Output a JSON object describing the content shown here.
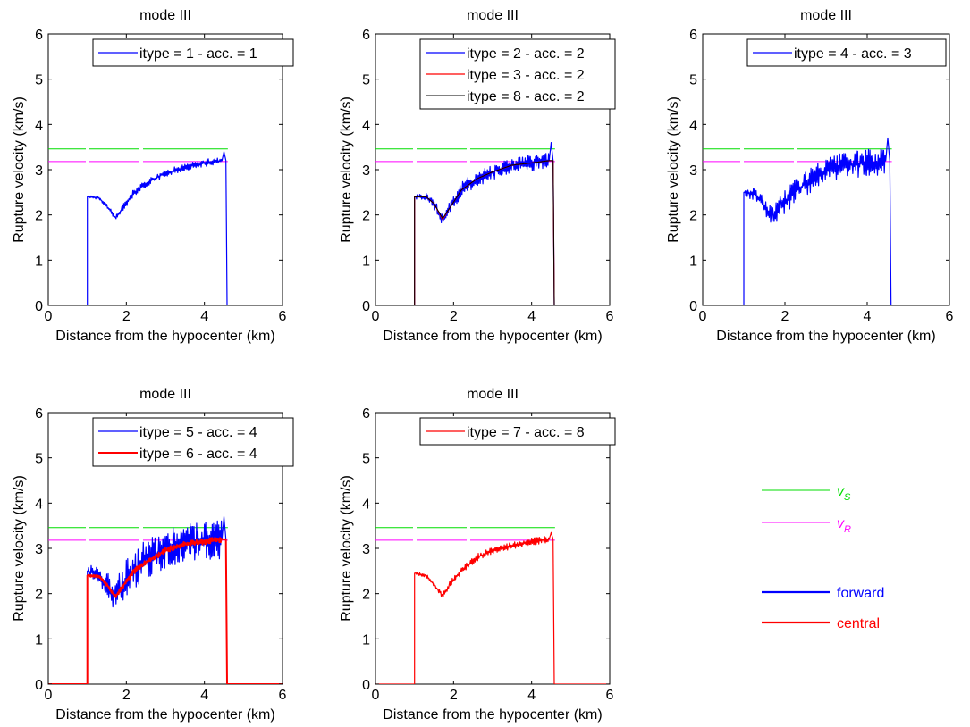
{
  "figure": {
    "global_legend": [
      {
        "label": "v",
        "subscript": "S",
        "color": "#00dd00",
        "italic": true
      },
      {
        "label": "v",
        "subscript": "R",
        "color": "#ff00ff",
        "italic": true
      },
      {
        "label": "forward",
        "color": "#0000ff",
        "bold": true
      },
      {
        "label": "central",
        "color": "#ff0000",
        "bold": true
      }
    ]
  },
  "chart_data": [
    {
      "type": "line",
      "title": "mode III",
      "xlabel": "Distance from the hypocenter (km)",
      "ylabel": "Rupture velocity (km/s)",
      "xlim": [
        0,
        6
      ],
      "ylim": [
        0,
        6
      ],
      "xticks": [
        0,
        2,
        4,
        6
      ],
      "yticks": [
        0,
        1,
        2,
        3,
        4,
        5,
        6
      ],
      "legend_position": "top-right",
      "reference_lines": [
        {
          "name": "v_S",
          "y": 3.46,
          "x": [
            0,
            4.6
          ],
          "color": "#00dd00"
        },
        {
          "name": "v_R",
          "y": 3.18,
          "x": [
            0,
            4.6
          ],
          "color": "#ff00ff"
        }
      ],
      "series": [
        {
          "name": "itype = 1 - acc. = 1",
          "color": "#0000ff",
          "width": 1.2,
          "noise": 0.08,
          "points": [
            [
              0,
              0
            ],
            [
              1,
              0
            ],
            [
              1,
              2.4
            ],
            [
              1.3,
              2.38
            ],
            [
              1.5,
              2.2
            ],
            [
              1.72,
              1.92
            ],
            [
              1.9,
              2.15
            ],
            [
              2.2,
              2.5
            ],
            [
              2.6,
              2.75
            ],
            [
              3.0,
              2.92
            ],
            [
              3.5,
              3.05
            ],
            [
              4.0,
              3.15
            ],
            [
              4.45,
              3.2
            ],
            [
              4.5,
              3.4
            ],
            [
              4.55,
              3.2
            ],
            [
              4.58,
              0
            ],
            [
              6,
              0
            ]
          ]
        }
      ]
    },
    {
      "type": "line",
      "title": "mode III",
      "xlabel": "Distance from the hypocenter (km)",
      "ylabel": "Rupture velocity (km/s)",
      "xlim": [
        0,
        6
      ],
      "ylim": [
        0,
        6
      ],
      "xticks": [
        0,
        2,
        4,
        6
      ],
      "yticks": [
        0,
        1,
        2,
        3,
        4,
        5,
        6
      ],
      "legend_position": "top-right",
      "reference_lines": [
        {
          "name": "v_S",
          "y": 3.46,
          "x": [
            0,
            4.6
          ],
          "color": "#00dd00"
        },
        {
          "name": "v_R",
          "y": 3.18,
          "x": [
            0,
            4.6
          ],
          "color": "#ff00ff"
        }
      ],
      "series": [
        {
          "name": "itype = 2 - acc. = 2",
          "color": "#0000ff",
          "width": 1.2,
          "noise": 0.18,
          "points": [
            [
              0,
              0
            ],
            [
              1,
              0
            ],
            [
              1,
              2.4
            ],
            [
              1.3,
              2.4
            ],
            [
              1.5,
              2.25
            ],
            [
              1.72,
              1.9
            ],
            [
              1.9,
              2.15
            ],
            [
              2.2,
              2.55
            ],
            [
              2.6,
              2.8
            ],
            [
              3.0,
              2.95
            ],
            [
              3.5,
              3.1
            ],
            [
              4.0,
              3.15
            ],
            [
              4.45,
              3.2
            ],
            [
              4.5,
              3.6
            ],
            [
              4.55,
              3.2
            ],
            [
              4.58,
              0
            ],
            [
              6,
              0
            ]
          ]
        },
        {
          "name": "itype = 3 - acc. = 2",
          "color": "#ff0000",
          "width": 1.2,
          "noise": 0.0,
          "points": [
            [
              0,
              0
            ],
            [
              1,
              0
            ],
            [
              1,
              2.4
            ],
            [
              1.3,
              2.4
            ],
            [
              1.5,
              2.25
            ],
            [
              1.72,
              1.9
            ],
            [
              1.9,
              2.15
            ],
            [
              2.2,
              2.55
            ],
            [
              2.6,
              2.8
            ],
            [
              3.0,
              2.95
            ],
            [
              3.5,
              3.1
            ],
            [
              4.0,
              3.15
            ],
            [
              4.45,
              3.2
            ],
            [
              4.55,
              3.2
            ],
            [
              4.58,
              0
            ],
            [
              6,
              0
            ]
          ]
        },
        {
          "name": "itype = 8 - acc. = 2",
          "color": "#000000",
          "width": 1.0,
          "noise": 0.0,
          "points": [
            [
              0,
              0
            ],
            [
              1,
              0
            ],
            [
              1,
              2.4
            ],
            [
              1.3,
              2.4
            ],
            [
              1.5,
              2.25
            ],
            [
              1.72,
              1.92
            ],
            [
              1.9,
              2.15
            ],
            [
              2.2,
              2.55
            ],
            [
              2.6,
              2.8
            ],
            [
              3.0,
              2.95
            ],
            [
              3.5,
              3.1
            ],
            [
              4.0,
              3.15
            ],
            [
              4.45,
              3.2
            ],
            [
              4.55,
              3.2
            ],
            [
              4.58,
              0
            ],
            [
              6,
              0
            ]
          ]
        }
      ]
    },
    {
      "type": "line",
      "title": "mode III",
      "xlabel": "Distance from the hypocenter (km)",
      "ylabel": "Rupture velocity (km/s)",
      "xlim": [
        0,
        6
      ],
      "ylim": [
        0,
        6
      ],
      "xticks": [
        0,
        2,
        4,
        6
      ],
      "yticks": [
        0,
        1,
        2,
        3,
        4,
        5,
        6
      ],
      "legend_position": "top-right",
      "reference_lines": [
        {
          "name": "v_S",
          "y": 3.46,
          "x": [
            0,
            4.6
          ],
          "color": "#00dd00"
        },
        {
          "name": "v_R",
          "y": 3.18,
          "x": [
            0,
            4.6
          ],
          "color": "#ff00ff"
        }
      ],
      "series": [
        {
          "name": "itype = 4 - acc. = 3",
          "color": "#0000ff",
          "width": 1.2,
          "noise": 0.3,
          "points": [
            [
              0,
              0
            ],
            [
              1,
              0
            ],
            [
              1,
              2.5
            ],
            [
              1.3,
              2.45
            ],
            [
              1.5,
              2.2
            ],
            [
              1.72,
              1.95
            ],
            [
              1.9,
              2.2
            ],
            [
              2.2,
              2.5
            ],
            [
              2.6,
              2.75
            ],
            [
              3.0,
              2.95
            ],
            [
              3.5,
              3.1
            ],
            [
              4.0,
              3.15
            ],
            [
              4.45,
              3.2
            ],
            [
              4.5,
              3.7
            ],
            [
              4.55,
              3.2
            ],
            [
              4.58,
              0
            ],
            [
              6,
              0
            ]
          ]
        }
      ]
    },
    {
      "type": "line",
      "title": "mode III",
      "xlabel": "Distance from the hypocenter (km)",
      "ylabel": "Rupture velocity (km/s)",
      "xlim": [
        0,
        6
      ],
      "ylim": [
        0,
        6
      ],
      "xticks": [
        0,
        2,
        4,
        6
      ],
      "yticks": [
        0,
        1,
        2,
        3,
        4,
        5,
        6
      ],
      "legend_position": "top-right",
      "reference_lines": [
        {
          "name": "v_S",
          "y": 3.46,
          "x": [
            0,
            4.6
          ],
          "color": "#00dd00"
        },
        {
          "name": "v_R",
          "y": 3.18,
          "x": [
            0,
            4.6
          ],
          "color": "#ff00ff"
        }
      ],
      "series": [
        {
          "name": "itype = 5 - acc. = 4",
          "color": "#0000ff",
          "width": 1.2,
          "noise": 0.45,
          "points": [
            [
              0,
              0
            ],
            [
              1,
              0
            ],
            [
              1,
              2.5
            ],
            [
              1.3,
              2.4
            ],
            [
              1.5,
              2.2
            ],
            [
              1.72,
              1.95
            ],
            [
              1.9,
              2.2
            ],
            [
              2.2,
              2.55
            ],
            [
              2.6,
              2.8
            ],
            [
              3.0,
              3.0
            ],
            [
              3.5,
              3.15
            ],
            [
              4.0,
              3.2
            ],
            [
              4.45,
              3.2
            ],
            [
              4.5,
              3.7
            ],
            [
              4.55,
              3.2
            ],
            [
              4.58,
              0
            ],
            [
              6,
              0
            ]
          ]
        },
        {
          "name": "itype = 6 - acc. = 4",
          "color": "#ff0000",
          "width": 2.0,
          "noise": 0.06,
          "points": [
            [
              0,
              0
            ],
            [
              1,
              0
            ],
            [
              1,
              2.4
            ],
            [
              1.3,
              2.38
            ],
            [
              1.5,
              2.2
            ],
            [
              1.72,
              1.92
            ],
            [
              1.9,
              2.15
            ],
            [
              2.2,
              2.5
            ],
            [
              2.6,
              2.75
            ],
            [
              3.0,
              2.95
            ],
            [
              3.5,
              3.1
            ],
            [
              4.0,
              3.15
            ],
            [
              4.45,
              3.2
            ],
            [
              4.55,
              3.2
            ],
            [
              4.58,
              0
            ],
            [
              6,
              0
            ]
          ]
        }
      ]
    },
    {
      "type": "line",
      "title": "mode III",
      "xlabel": "Distance from the hypocenter (km)",
      "ylabel": "Rupture velocity (km/s)",
      "xlim": [
        0,
        6
      ],
      "ylim": [
        0,
        6
      ],
      "xticks": [
        0,
        2,
        4,
        6
      ],
      "yticks": [
        0,
        1,
        2,
        3,
        4,
        5,
        6
      ],
      "legend_position": "top-right",
      "reference_lines": [
        {
          "name": "v_S",
          "y": 3.46,
          "x": [
            0,
            4.6
          ],
          "color": "#00dd00"
        },
        {
          "name": "v_R",
          "y": 3.18,
          "x": [
            0,
            4.6
          ],
          "color": "#ff00ff"
        }
      ],
      "series": [
        {
          "name": "itype = 7 - acc. = 8",
          "color": "#ff0000",
          "width": 1.2,
          "noise": 0.08,
          "points": [
            [
              0,
              0
            ],
            [
              1,
              0
            ],
            [
              1,
              2.45
            ],
            [
              1.3,
              2.4
            ],
            [
              1.5,
              2.2
            ],
            [
              1.72,
              1.95
            ],
            [
              1.9,
              2.2
            ],
            [
              2.2,
              2.5
            ],
            [
              2.6,
              2.8
            ],
            [
              3.0,
              2.95
            ],
            [
              3.5,
              3.05
            ],
            [
              4.0,
              3.15
            ],
            [
              4.45,
              3.2
            ],
            [
              4.5,
              3.35
            ],
            [
              4.55,
              3.2
            ],
            [
              4.58,
              0
            ],
            [
              6,
              0
            ]
          ]
        }
      ]
    }
  ]
}
